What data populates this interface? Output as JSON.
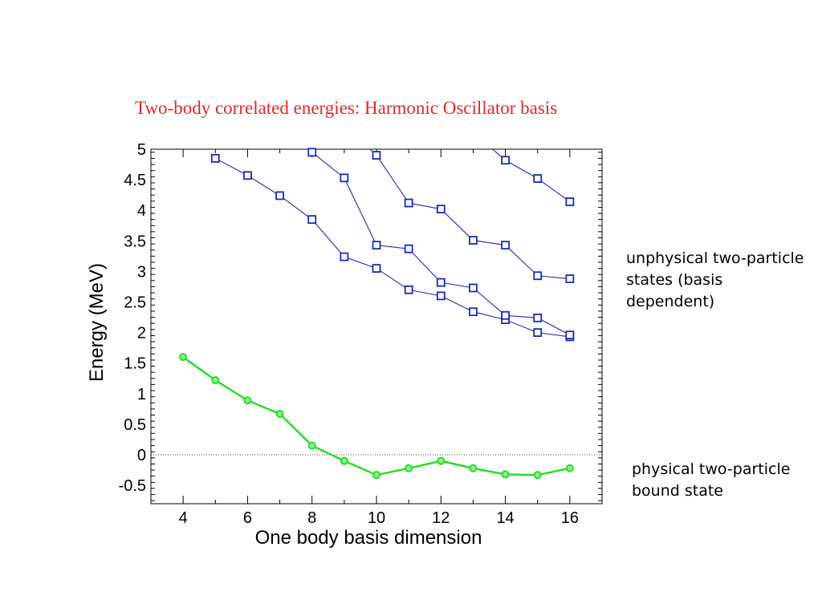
{
  "chart_data": {
    "type": "line",
    "title": "Two-body correlated energies: Harmonic Oscillator basis",
    "xlabel": "One body basis dimension",
    "ylabel": "Energy (MeV)",
    "xlim": [
      3,
      17
    ],
    "ylim": [
      -0.8,
      5
    ],
    "x_ticks": [
      "4",
      "6",
      "8",
      "10",
      "12",
      "14",
      "16"
    ],
    "y_ticks": [
      "-0.5",
      "0",
      "0.5",
      "1",
      "1.5",
      "2",
      "2.5",
      "3",
      "3.5",
      "4",
      "4.5",
      "5"
    ],
    "reference_line": {
      "y": 0,
      "style": "dotted"
    },
    "series": [
      {
        "marker": "circle",
        "color": "#22dd22",
        "x": [
          4,
          5,
          6,
          7,
          8,
          9,
          10,
          11,
          12,
          13,
          14,
          15,
          16
        ],
        "y": [
          1.6,
          1.22,
          0.89,
          0.67,
          0.15,
          -0.1,
          -0.33,
          -0.22,
          -0.1,
          -0.22,
          -0.32,
          -0.33,
          -0.22
        ]
      },
      {
        "marker": "square",
        "color": "#1a2bb5",
        "x": [
          5,
          6,
          7,
          8,
          9,
          10,
          11,
          12,
          13,
          14,
          15,
          16
        ],
        "y": [
          4.85,
          4.57,
          4.24,
          3.85,
          3.24,
          3.05,
          2.7,
          2.6,
          2.34,
          2.21,
          2.0,
          1.93
        ]
      },
      {
        "marker": "square",
        "color": "#1a2bb5",
        "x": [
          8,
          9,
          10,
          11,
          12,
          13,
          14,
          15,
          16
        ],
        "y": [
          4.95,
          4.53,
          3.43,
          3.37,
          2.82,
          2.73,
          2.28,
          2.24,
          1.96
        ]
      },
      {
        "marker": "square",
        "color": "#1a2bb5",
        "x": [
          9.8,
          10,
          11,
          12,
          13,
          14,
          15,
          16
        ],
        "y": [
          5.0,
          4.9,
          4.12,
          4.02,
          3.51,
          3.43,
          2.93,
          2.88
        ]
      },
      {
        "marker": "square",
        "color": "#1a2bb5",
        "x": [
          13.6,
          14,
          15,
          16
        ],
        "y": [
          5.0,
          4.82,
          4.52,
          4.14
        ]
      }
    ]
  },
  "annotations": {
    "unphysical": "unphysical two-particle states (basis dependent)",
    "physical": "physical two-particle bound state"
  }
}
